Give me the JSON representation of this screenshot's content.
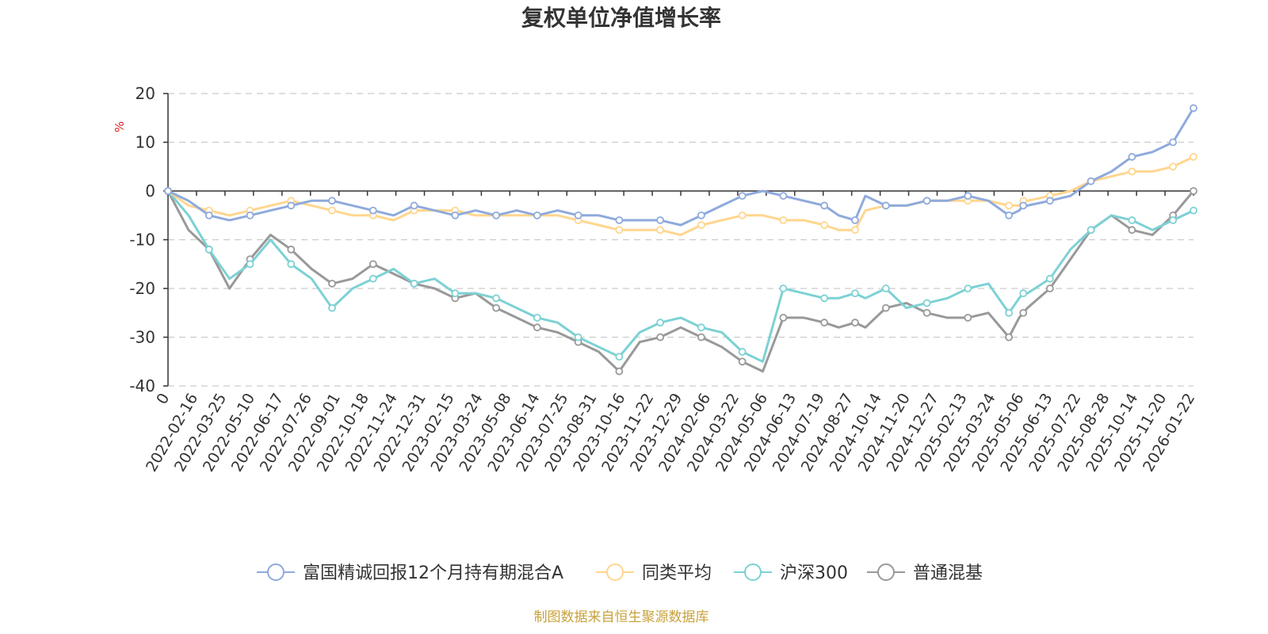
{
  "chart_data": {
    "type": "line",
    "title": "复权单位净值增长率",
    "ylabel": "%",
    "ylim": [
      -40,
      20
    ],
    "yticks": [
      20,
      10,
      0,
      -10,
      -20,
      -30,
      -40
    ],
    "grid": true,
    "legend_position": "bottom",
    "source": "制图数据来自恒生聚源数据库",
    "x_labels": [
      "0",
      "2022-02-16",
      "2022-03-25",
      "2022-05-10",
      "2022-06-17",
      "2022-07-26",
      "2022-09-01",
      "2022-10-18",
      "2022-11-24",
      "2022-12-31",
      "2023-02-15",
      "2023-03-24",
      "2023-05-08",
      "2023-06-14",
      "2023-07-25",
      "2023-08-31",
      "2023-10-16",
      "2023-11-22",
      "2023-12-29",
      "2024-02-06",
      "2024-03-22",
      "2024-05-06",
      "2024-06-13",
      "2024-07-19",
      "2024-08-27",
      "2024-10-14",
      "2024-11-20",
      "2024-12-27",
      "2025-02-13",
      "2025-03-24",
      "2025-05-06",
      "2025-06-13",
      "2025-07-22",
      "2025-08-28",
      "2025-10-14",
      "2025-11-20",
      "2026-01-22"
    ],
    "x": [
      0,
      0.02,
      0.04,
      0.06,
      0.08,
      0.1,
      0.12,
      0.14,
      0.16,
      0.18,
      0.2,
      0.22,
      0.24,
      0.26,
      0.28,
      0.3,
      0.32,
      0.34,
      0.36,
      0.38,
      0.4,
      0.42,
      0.44,
      0.46,
      0.48,
      0.5,
      0.52,
      0.54,
      0.56,
      0.58,
      0.6,
      0.62,
      0.64,
      0.654,
      0.67,
      0.68,
      0.7,
      0.72,
      0.74,
      0.76,
      0.78,
      0.8,
      0.82,
      0.83,
      0.834,
      0.838,
      0.86,
      0.88,
      0.9,
      0.92,
      0.94,
      0.96,
      0.98,
      1.0
    ],
    "series": [
      {
        "name": "富国精诚回报12个月持有期混合A",
        "color": "#8faadc",
        "values": [
          0,
          -2,
          -5,
          -6,
          -5,
          -4,
          -3,
          -2,
          -2,
          -3,
          -4,
          -5,
          -3,
          -4,
          -5,
          -4,
          -5,
          -4,
          -5,
          -4,
          -5,
          -5,
          -6,
          -6,
          -6,
          -7,
          -5,
          -3,
          -1,
          0,
          -1,
          -2,
          -3,
          -5,
          -6,
          -1,
          -3,
          -3,
          -2,
          -2,
          -1,
          -2,
          -5,
          -4,
          -3,
          -3,
          -2,
          -1,
          2,
          4,
          7,
          8,
          10,
          17
        ]
      },
      {
        "name": "同类平均",
        "color": "#ffd68f",
        "values": [
          0,
          -3,
          -4,
          -5,
          -4,
          -3,
          -2,
          -3,
          -4,
          -5,
          -5,
          -6,
          -4,
          -4,
          -4,
          -5,
          -5,
          -5,
          -5,
          -5,
          -6,
          -7,
          -8,
          -8,
          -8,
          -9,
          -7,
          -6,
          -5,
          -5,
          -6,
          -6,
          -7,
          -8,
          -8,
          -4,
          -3,
          -3,
          -2,
          -2,
          -2,
          -2,
          -3,
          -3,
          -2,
          -2,
          -1,
          0,
          2,
          3,
          4,
          4,
          5,
          7
        ]
      },
      {
        "name": "沪深300",
        "color": "#7dd1d4",
        "values": [
          0,
          -5,
          -12,
          -18,
          -15,
          -10,
          -15,
          -18,
          -24,
          -20,
          -18,
          -16,
          -19,
          -18,
          -21,
          -21,
          -22,
          -24,
          -26,
          -27,
          -30,
          -32,
          -34,
          -29,
          -27,
          -26,
          -28,
          -29,
          -33,
          -35,
          -20,
          -21,
          -22,
          -22,
          -21,
          -22,
          -20,
          -24,
          -23,
          -22,
          -20,
          -19,
          -25,
          -22,
          -21,
          -21,
          -18,
          -12,
          -8,
          -5,
          -6,
          -8,
          -6,
          -4
        ]
      },
      {
        "name": "普通混基",
        "color": "#999999",
        "values": [
          0,
          -8,
          -12,
          -20,
          -14,
          -9,
          -12,
          -16,
          -19,
          -18,
          -15,
          -17,
          -19,
          -20,
          -22,
          -21,
          -24,
          -26,
          -28,
          -29,
          -31,
          -33,
          -37,
          -31,
          -30,
          -28,
          -30,
          -32,
          -35,
          -37,
          -26,
          -26,
          -27,
          -28,
          -27,
          -28,
          -24,
          -23,
          -25,
          -26,
          -26,
          -25,
          -30,
          -26,
          -25,
          -24,
          -20,
          -14,
          -8,
          -5,
          -8,
          -9,
          -5,
          0
        ]
      }
    ]
  }
}
